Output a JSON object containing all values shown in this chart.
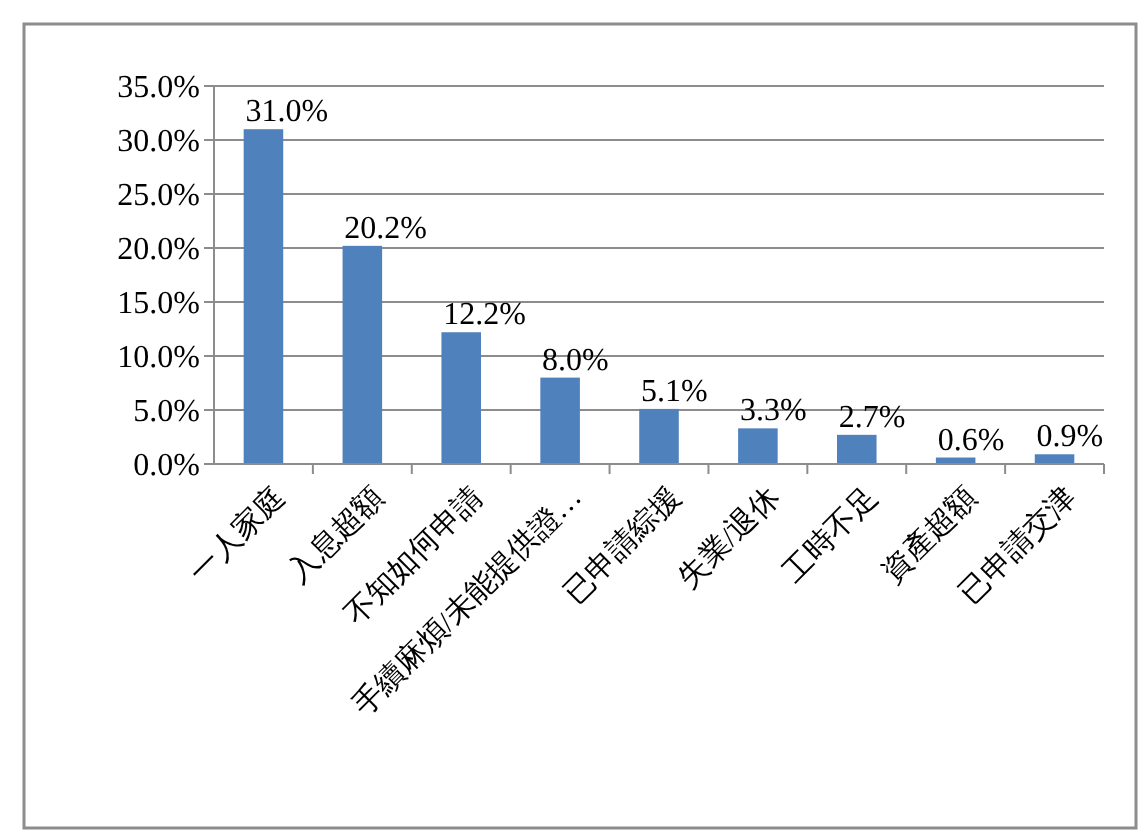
{
  "chart_data": {
    "type": "bar",
    "categories": [
      "一人家庭",
      "入息超額",
      "不知如何申請",
      "手續麻煩/未能提供證…",
      "已申請綜援",
      "失業/退休",
      "工時不足",
      "資產超額",
      "已申請交津"
    ],
    "values": [
      31.0,
      20.2,
      12.2,
      8.0,
      5.1,
      3.3,
      2.7,
      0.6,
      0.9
    ],
    "value_labels": [
      "31.0%",
      "20.2%",
      "12.2%",
      "8.0%",
      "5.1%",
      "3.3%",
      "2.7%",
      "0.6%",
      "0.9%"
    ],
    "color": "#4f81bd",
    "ylim": [
      0,
      35
    ],
    "yticks": [
      {
        "value": 0,
        "label": "0.0%"
      },
      {
        "value": 5,
        "label": "5.0%"
      },
      {
        "value": 10,
        "label": "10.0%"
      },
      {
        "value": 15,
        "label": "15.0%"
      },
      {
        "value": 20,
        "label": "20.0%"
      },
      {
        "value": 25,
        "label": "25.0%"
      },
      {
        "value": 30,
        "label": "30.0%"
      },
      {
        "value": 35,
        "label": "35.0%"
      }
    ],
    "grid": "y"
  }
}
